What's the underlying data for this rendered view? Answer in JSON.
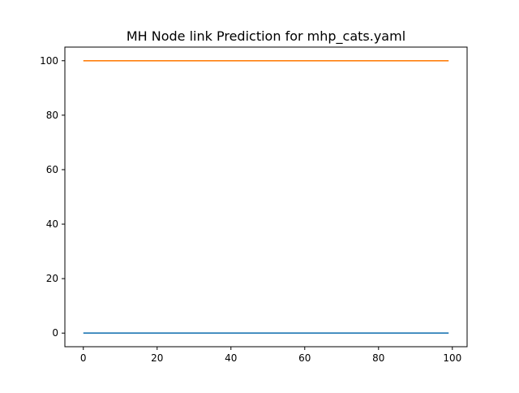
{
  "chart_data": {
    "type": "line",
    "title": "MH Node link Prediction for mhp_cats.yaml",
    "xlabel": "",
    "ylabel": "",
    "xlim": [
      -5,
      104
    ],
    "ylim": [
      -5,
      105
    ],
    "xticks": [
      0,
      20,
      40,
      60,
      80,
      100
    ],
    "yticks": [
      0,
      20,
      40,
      60,
      80,
      100
    ],
    "grid": false,
    "series": [
      {
        "color": "#1f77b4",
        "x": [
          0,
          99
        ],
        "y": [
          0,
          0
        ]
      },
      {
        "color": "#ff7f0e",
        "x": [
          0,
          99
        ],
        "y": [
          100,
          100
        ]
      }
    ]
  }
}
